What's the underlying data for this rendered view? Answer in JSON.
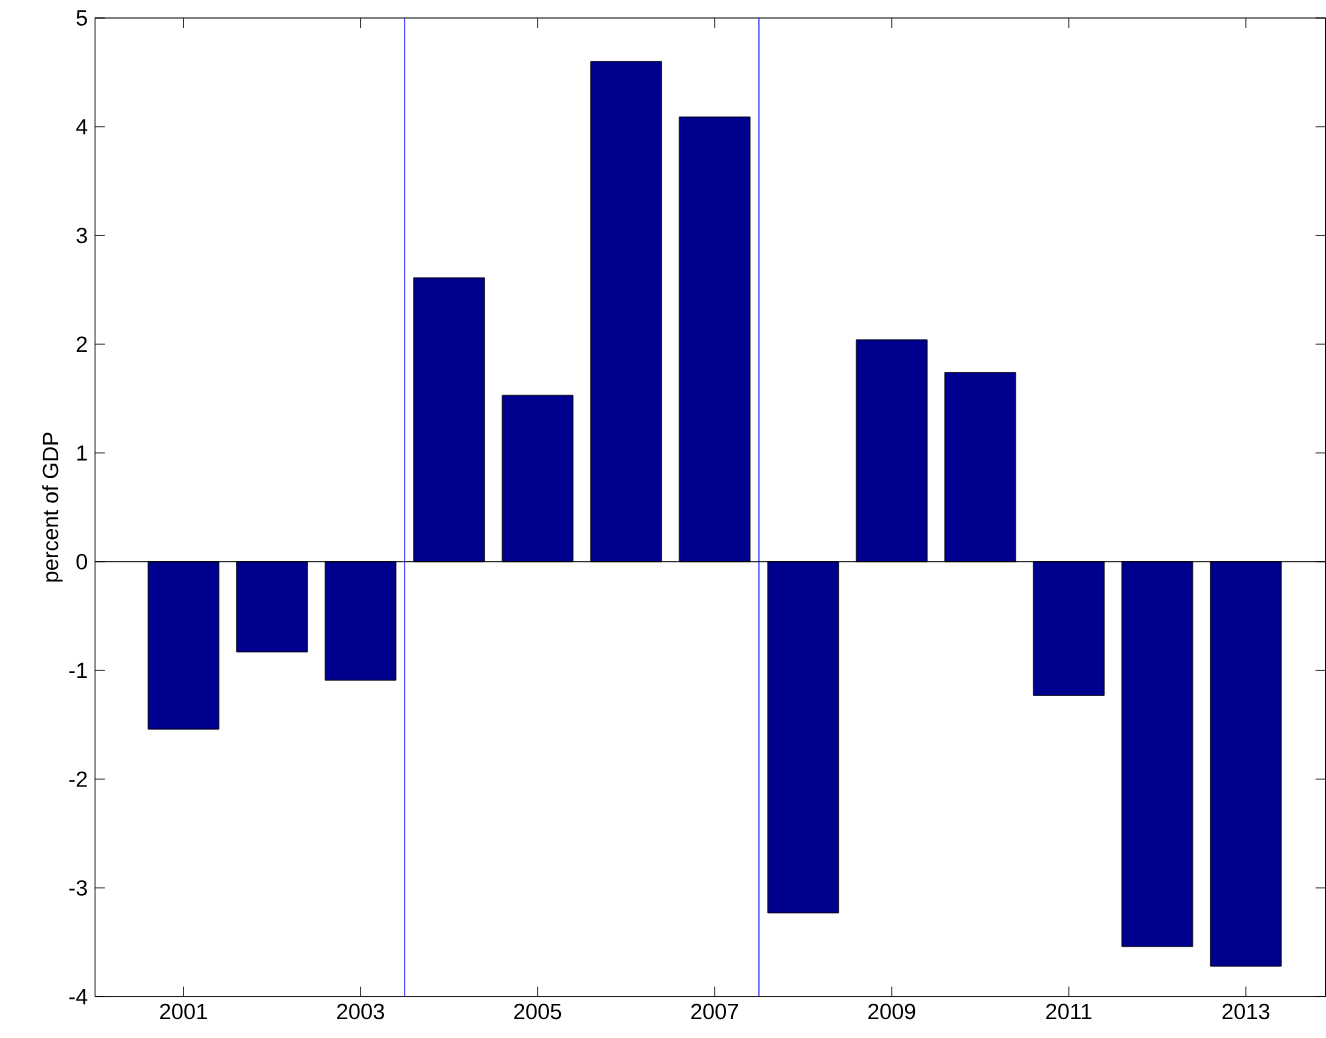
{
  "chart_data": {
    "type": "bar",
    "ylabel": "percent of GDP",
    "x": [
      2001,
      2002,
      2003,
      2004,
      2005,
      2006,
      2007,
      2008,
      2009,
      2010,
      2011,
      2012,
      2013
    ],
    "values": [
      -1.54,
      -0.83,
      -1.09,
      2.61,
      1.53,
      4.6,
      4.09,
      -3.23,
      2.04,
      1.74,
      -1.23,
      -3.54,
      -3.72
    ],
    "color": "#00008f",
    "xlim": [
      2000,
      2013.9
    ],
    "xticks": [
      2001,
      2003,
      2005,
      2007,
      2009,
      2011,
      2013
    ],
    "ylim": [
      -4,
      5
    ],
    "yticks": [
      -4,
      -3,
      -2,
      -1,
      0,
      1,
      2,
      3,
      4,
      5
    ],
    "grid": false,
    "ref_lines": [
      {
        "axis": "x",
        "value": 2003.5,
        "color": "#0000ff"
      },
      {
        "axis": "x",
        "value": 2007.5,
        "color": "#0000ff"
      },
      {
        "axis": "y",
        "value": 0,
        "color": "#000000"
      }
    ]
  }
}
